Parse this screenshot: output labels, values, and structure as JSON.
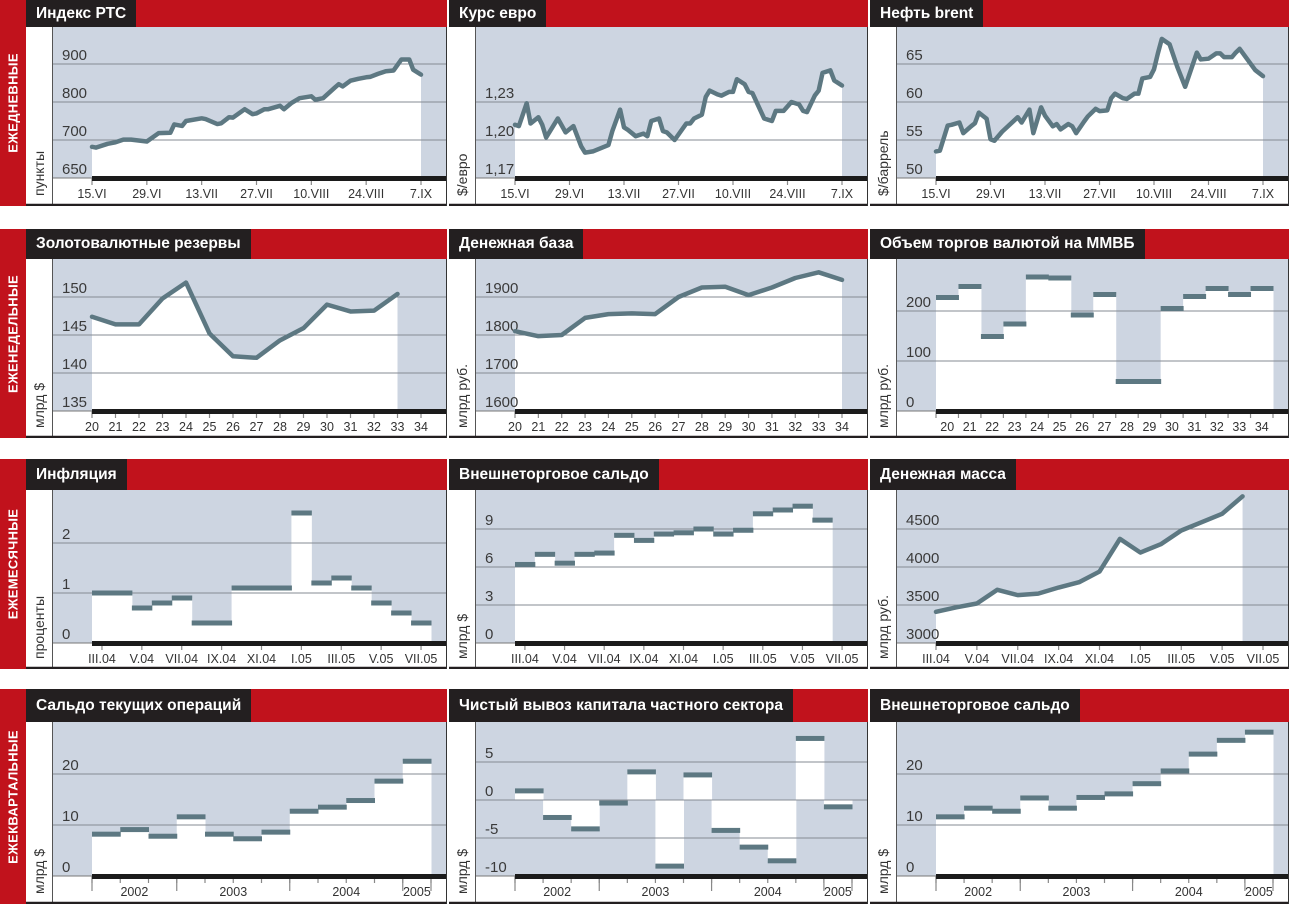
{
  "rows": [
    {
      "label": "ЕЖЕДНЕВНЫЕ"
    },
    {
      "label": "ЕЖЕНЕДЕЛЬНЫЕ"
    },
    {
      "label": "ЕЖЕМЕСЯЧНЫЕ"
    },
    {
      "label": "ЕЖЕКВАРТАЛЬНЫЕ"
    }
  ],
  "colors": {
    "accent": "#c1121c",
    "header": "#231f20",
    "plot_bg": "#cdd5e1",
    "series": "#5d7882",
    "fill": "#ffffff"
  },
  "chart_data": [
    {
      "type": "line",
      "x_unit": "day",
      "title": "Индекс РТС",
      "ylabel": "пункты",
      "yticks": [
        "650",
        "700",
        "800",
        "900"
      ],
      "ylim": [
        650,
        940
      ],
      "grid": true,
      "xticks": [
        "15.VI",
        "29.VI",
        "13.VII",
        "27.VII",
        "10.VIII",
        "24.VIII",
        "7.IX"
      ],
      "x": [
        "15.VI",
        "16.VI",
        "19.VI",
        "21.VI",
        "23.VI",
        "25.VI",
        "29.VI",
        "2.VII",
        "5.VII",
        "6.VII",
        "8.VII",
        "9.VII",
        "13.VII",
        "14.VII",
        "17.VII",
        "18.VII",
        "20.VII",
        "21.VII",
        "24.VII",
        "26.VII",
        "27.VII",
        "29.VII",
        "30.VII",
        "2.VIII",
        "3.VIII",
        "5.VIII",
        "7.VIII",
        "10.VIII",
        "11.VIII",
        "13.VIII",
        "16.VIII",
        "17.VIII",
        "18.VIII",
        "20.VIII",
        "22.VIII",
        "24.VIII",
        "25.VIII",
        "27.VIII",
        "29.VIII",
        "31.VIII",
        "2.IX",
        "4.IX",
        "5.IX",
        "7.IX"
      ],
      "values": [
        691,
        690,
        695,
        697,
        701,
        701,
        698,
        718,
        719,
        741,
        737,
        750,
        757,
        755,
        742,
        744,
        760,
        759,
        781,
        768,
        770,
        781,
        781,
        790,
        781,
        798,
        810,
        815,
        806,
        810,
        838,
        847,
        841,
        856,
        861,
        865,
        866,
        874,
        881,
        883,
        912,
        912,
        885,
        872
      ]
    },
    {
      "type": "line",
      "x_unit": "day",
      "title": "Курс евро",
      "ylabel": "$/евро",
      "yticks": [
        "1,17",
        "1,20",
        "1,23"
      ],
      "ylim": [
        1.17,
        1.29
      ],
      "grid": true,
      "xticks": [
        "15.VI",
        "29.VI",
        "13.VII",
        "27.VII",
        "10.VIII",
        "24.VIII",
        "7.IX"
      ],
      "x": [
        "15.VI",
        "16.VI",
        "18.VI",
        "19.VI",
        "21.VI",
        "22.VI",
        "23.VI",
        "26.VI",
        "28.VI",
        "30.VI",
        "2.VII",
        "3.VII",
        "5.VII",
        "9.VII",
        "10.VII",
        "12.VII",
        "13.VII",
        "14.VII",
        "16.VII",
        "18.VII",
        "19.VII",
        "20.VII",
        "22.VII",
        "23.VII",
        "24.VII",
        "26.VII",
        "29.VII",
        "30.VII",
        "31.VII",
        "2.VIII",
        "3.VIII",
        "4.VIII",
        "6.VIII",
        "7.VIII",
        "9.VIII",
        "10.VIII",
        "11.VIII",
        "13.VIII",
        "14.VIII",
        "15.VIII",
        "18.VIII",
        "20.VIII",
        "21.VIII",
        "23.VIII",
        "25.VIII",
        "27.VIII",
        "28.VIII",
        "29.VIII",
        "31.VIII",
        "1.IX",
        "2.IX",
        "4.IX",
        "5.IX",
        "7.IX"
      ],
      "values": [
        1.212,
        1.211,
        1.229,
        1.213,
        1.218,
        1.212,
        1.202,
        1.217,
        1.206,
        1.211,
        1.195,
        1.19,
        1.191,
        1.196,
        1.207,
        1.224,
        1.21,
        1.208,
        1.203,
        1.205,
        1.203,
        1.215,
        1.217,
        1.207,
        1.206,
        1.2,
        1.213,
        1.213,
        1.217,
        1.22,
        1.234,
        1.239,
        1.236,
        1.235,
        1.238,
        1.238,
        1.248,
        1.244,
        1.238,
        1.237,
        1.217,
        1.215,
        1.223,
        1.223,
        1.23,
        1.228,
        1.223,
        1.222,
        1.235,
        1.239,
        1.253,
        1.255,
        1.247,
        1.243
      ]
    },
    {
      "type": "line",
      "x_unit": "day",
      "title": "Нефть brent",
      "ylabel": "$/баррель",
      "yticks": [
        "50",
        "55",
        "60",
        "65"
      ],
      "ylim": [
        50,
        70
      ],
      "grid": true,
      "xticks": [
        "15.VI",
        "29.VI",
        "13.VII",
        "27.VII",
        "10.VIII",
        "24.VIII",
        "7.IX"
      ],
      "x": [
        "15.VI",
        "16.VI",
        "18.VI",
        "19.VI",
        "21.VI",
        "22.VI",
        "24.VI",
        "25.VI",
        "26.VI",
        "28.VI",
        "29.VI",
        "30.VI",
        "2.VII",
        "6.VII",
        "7.VII",
        "9.VII",
        "10.VII",
        "12.VII",
        "13.VII",
        "15.VII",
        "16.VII",
        "17.VII",
        "19.VII",
        "20.VII",
        "21.VII",
        "23.VII",
        "24.VII",
        "26.VII",
        "27.VII",
        "29.VII",
        "30.VII",
        "31.VII",
        "2.VIII",
        "3.VIII",
        "5.VIII",
        "6.VIII",
        "7.VIII",
        "9.VIII",
        "10.VIII",
        "11.VIII",
        "12.VIII",
        "14.VIII",
        "16.VIII",
        "18.VIII",
        "21.VIII",
        "22.VIII",
        "24.VIII",
        "26.VIII",
        "27.VIII",
        "28.VIII",
        "30.VIII",
        "31.VIII",
        "1.IX",
        "3.IX",
        "5.IX",
        "7.IX"
      ],
      "values": [
        53.5,
        53.6,
        56.9,
        57.0,
        57.3,
        55.9,
        56.8,
        57.2,
        58.6,
        57.8,
        55.1,
        54.9,
        56.1,
        58.0,
        57.3,
        59.0,
        55.9,
        59.3,
        58.2,
        56.8,
        57.1,
        56.4,
        57.1,
        56.8,
        55.9,
        57.4,
        58.1,
        59.1,
        58.8,
        58.9,
        60.5,
        61.1,
        60.5,
        60.4,
        61.1,
        61.1,
        63.1,
        63.3,
        64.3,
        66.4,
        68.3,
        67.6,
        64.6,
        62.0,
        66.5,
        65.6,
        65.7,
        66.4,
        66.4,
        65.9,
        65.9,
        66.5,
        67.0,
        65.6,
        64.2,
        63.4
      ]
    },
    {
      "type": "line",
      "x_unit": "week",
      "title": "Золотовалютные резервы",
      "ylabel": "млрд $",
      "yticks": [
        "135",
        "140",
        "145",
        "150"
      ],
      "ylim": [
        135,
        154.8
      ],
      "grid": true,
      "xticks": [
        "20",
        "21",
        "22",
        "23",
        "24",
        "25",
        "26",
        "27",
        "28",
        "29",
        "30",
        "31",
        "32",
        "33",
        "34"
      ],
      "values": [
        147.4,
        146.4,
        146.4,
        149.8,
        151.9,
        145.2,
        142.2,
        142.0,
        144.3,
        145.9,
        149.0,
        148.1,
        148.2,
        150.4
      ]
    },
    {
      "type": "line",
      "x_unit": "week",
      "title": "Денежная база",
      "ylabel": "млрд руб.",
      "yticks": [
        "1600",
        "1700",
        "1800",
        "1900"
      ],
      "ylim": [
        1600,
        1997
      ],
      "grid": true,
      "xticks": [
        "20",
        "21",
        "22",
        "23",
        "24",
        "25",
        "26",
        "27",
        "28",
        "29",
        "30",
        "31",
        "32",
        "33",
        "34"
      ],
      "values": [
        1810,
        1797,
        1800,
        1845,
        1855,
        1857,
        1855,
        1900,
        1925,
        1927,
        1905,
        1925,
        1950,
        1965,
        1945
      ]
    },
    {
      "type": "step",
      "x_unit": "week",
      "title": "Объем торгов валютой на ММВБ",
      "ylabel": "млрд руб.",
      "yticks": [
        "0",
        "100",
        "200"
      ],
      "ylim": [
        0,
        300
      ],
      "grid": true,
      "xticks": [
        "20",
        "21",
        "22",
        "23",
        "24",
        "25",
        "26",
        "27",
        "28",
        "29",
        "30",
        "31",
        "32",
        "33",
        "34"
      ],
      "values": [
        227,
        249,
        149,
        174,
        268,
        266,
        192,
        233,
        59,
        59,
        205,
        229,
        245,
        233,
        245
      ]
    },
    {
      "type": "step",
      "x_unit": "month",
      "title": "Инфляция",
      "ylabel": "проценты",
      "yticks": [
        "0",
        "1",
        "2"
      ],
      "ylim": [
        0,
        3.0
      ],
      "grid": true,
      "xticks": [
        "III.04",
        "V.04",
        "VII.04",
        "IX.04",
        "XI.04",
        "I.05",
        "III.05",
        "V.05",
        "VII.05"
      ],
      "values": [
        1.0,
        1.0,
        0.7,
        0.8,
        0.9,
        0.4,
        0.4,
        1.1,
        1.1,
        1.1,
        2.6,
        1.2,
        1.3,
        1.1,
        0.8,
        0.6,
        0.4
      ]
    },
    {
      "type": "step",
      "x_unit": "month",
      "title": "Внешнеторговое сальдо",
      "ylabel": "млрд $",
      "yticks": [
        "0",
        "3",
        "6",
        "9"
      ],
      "ylim": [
        0,
        12
      ],
      "grid": true,
      "xticks": [
        "III.04",
        "V.04",
        "VII.04",
        "IX.04",
        "XI.04",
        "I.05",
        "III.05",
        "V.05",
        "VII.05"
      ],
      "values": [
        6.2,
        7.0,
        6.3,
        7.0,
        7.1,
        8.5,
        8.1,
        8.6,
        8.7,
        9.0,
        8.6,
        8.9,
        10.2,
        10.5,
        10.8,
        9.7
      ]
    },
    {
      "type": "line",
      "x_unit": "month",
      "title": "Денежная масса",
      "ylabel": "млрд руб.",
      "yticks": [
        "3000",
        "3500",
        "4000",
        "4500"
      ],
      "ylim": [
        3000,
        4990
      ],
      "grid": true,
      "xticks": [
        "III.04",
        "V.04",
        "VII.04",
        "IX.04",
        "XI.04",
        "I.05",
        "III.05",
        "V.05",
        "VII.05"
      ],
      "values": [
        3410,
        3470,
        3520,
        3700,
        3630,
        3650,
        3730,
        3800,
        3940,
        4370,
        4190,
        4300,
        4480,
        4590,
        4700,
        4930
      ]
    },
    {
      "type": "step",
      "x_unit": "quarter",
      "title": "Сальдо текущих операций",
      "ylabel": "млрд $",
      "yticks": [
        "0",
        "10",
        "20"
      ],
      "ylim": [
        0,
        29.6
      ],
      "grid": true,
      "groups": [
        {
          "label": "2002",
          "count": 3
        },
        {
          "label": "2003",
          "count": 4
        },
        {
          "label": "2004",
          "count": 4
        },
        {
          "label": "2005",
          "count": 1
        }
      ],
      "values": [
        8.2,
        9.1,
        7.8,
        11.6,
        8.2,
        7.3,
        8.6,
        12.7,
        13.5,
        14.8,
        18.6,
        22.5
      ]
    },
    {
      "type": "step",
      "x_unit": "quarter",
      "title": "Чистый вывоз капитала частного сектора",
      "ylabel": "млрд $",
      "yticks": [
        "-10",
        "-5",
        "0",
        "5"
      ],
      "ylim": [
        -10,
        9.6
      ],
      "grid": true,
      "groups": [
        {
          "label": "2002",
          "count": 3
        },
        {
          "label": "2003",
          "count": 4
        },
        {
          "label": "2004",
          "count": 4
        },
        {
          "label": "2005",
          "count": 1
        }
      ],
      "values": [
        1.2,
        -2.3,
        -3.8,
        -0.4,
        3.7,
        -8.7,
        3.3,
        -4.0,
        -6.2,
        -8.0,
        8.1,
        -0.9
      ]
    },
    {
      "type": "step",
      "x_unit": "quarter",
      "title": "Внешнеторговое сальдо",
      "ylabel": "млрд $",
      "yticks": [
        "0",
        "10",
        "20"
      ],
      "ylim": [
        0,
        29.6
      ],
      "grid": true,
      "groups": [
        {
          "label": "2002",
          "count": 3
        },
        {
          "label": "2003",
          "count": 4
        },
        {
          "label": "2004",
          "count": 4
        },
        {
          "label": "2005",
          "count": 1
        }
      ],
      "values": [
        11.6,
        13.3,
        12.7,
        15.3,
        13.3,
        15.4,
        16.1,
        18.1,
        20.6,
        23.9,
        26.6,
        28.2
      ]
    }
  ]
}
